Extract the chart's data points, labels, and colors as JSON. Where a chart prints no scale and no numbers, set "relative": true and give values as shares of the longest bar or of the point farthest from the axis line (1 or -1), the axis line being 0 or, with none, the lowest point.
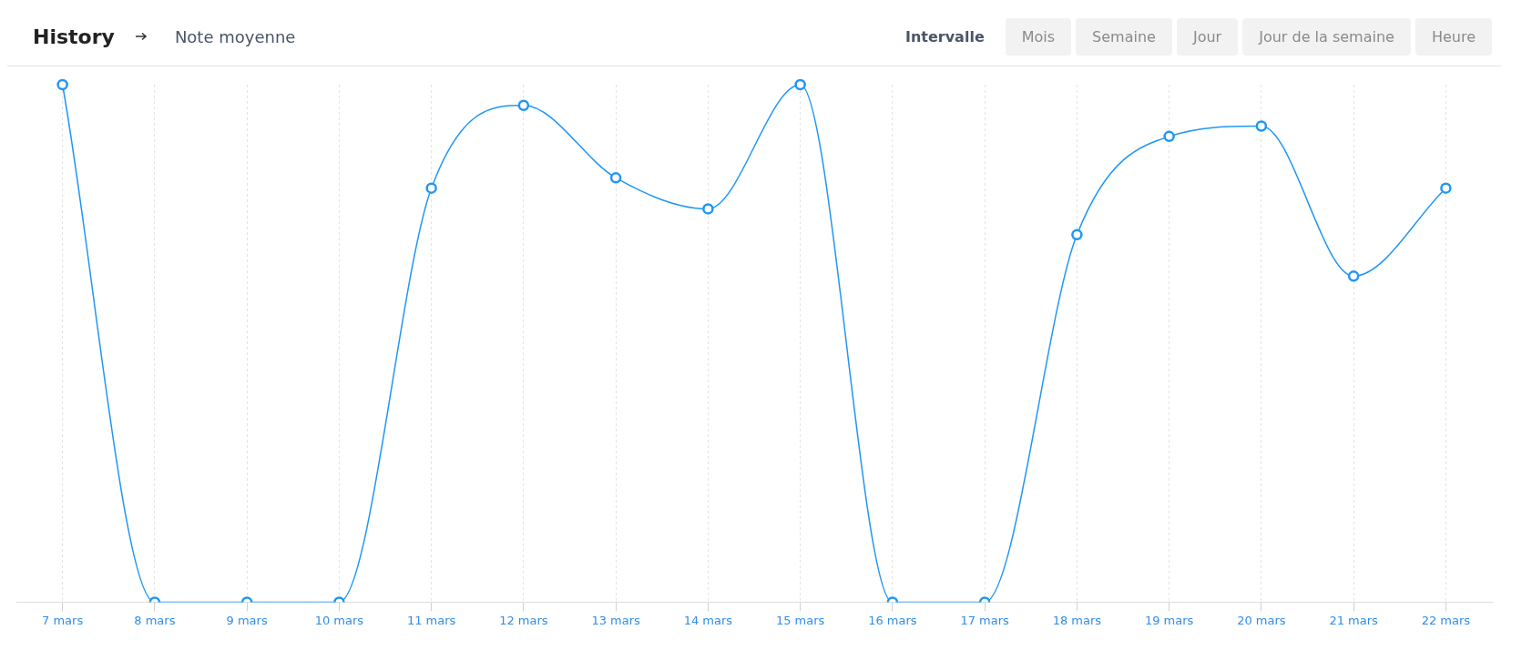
{
  "chart_data": {
    "type": "line",
    "title": "History",
    "subtitle": "Note moyenne",
    "annotations": [
      "Intervalle",
      "Mois",
      "Semaine",
      "Jour",
      "Jour de la semaine",
      "Heure"
    ],
    "categories": [
      "7 mars",
      "8 mars",
      "9 mars",
      "10 mars",
      "11 mars",
      "12 mars",
      "13 mars",
      "14 mars",
      "15 mars",
      "16 mars",
      "17 mars",
      "18 mars",
      "19 mars",
      "20 mars",
      "21 mars",
      "22 mars"
    ],
    "series": [
      {
        "color": "#2196f3",
        "values": [
          1.0,
          0,
          0,
          0,
          0.8,
          0.96,
          0.82,
          0.76,
          1.0,
          0,
          0,
          0.71,
          0.9,
          0.92,
          0.63,
          0.8
        ]
      }
    ],
    "relative": true,
    "grid": "x",
    "marker": "circle",
    "line_style": "solid"
  }
}
